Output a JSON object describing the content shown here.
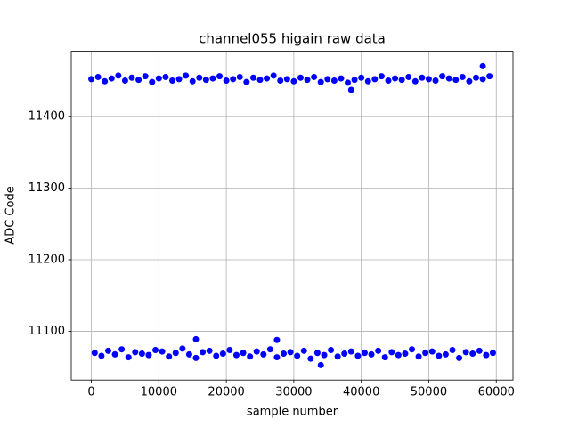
{
  "chart_data": {
    "type": "scatter",
    "title": "channel055 higain raw data",
    "xlabel": "sample number",
    "ylabel": "ADC Code",
    "color": "#0000ff",
    "grid": true,
    "xlim": [
      -2975,
      62475
    ],
    "ylim": [
      11032.2,
      11490.8
    ],
    "xticks": [
      0,
      10000,
      20000,
      30000,
      40000,
      50000,
      60000
    ],
    "yticks": [
      11100,
      11200,
      11300,
      11400
    ],
    "x": [
      0,
      1000,
      2000,
      3000,
      4000,
      5000,
      6000,
      7000,
      8000,
      9000,
      10000,
      11000,
      12000,
      13000,
      14000,
      15000,
      16000,
      17000,
      18000,
      19000,
      20000,
      21000,
      22000,
      23000,
      24000,
      25000,
      26000,
      27000,
      28000,
      29000,
      30000,
      31000,
      32000,
      33000,
      34000,
      35000,
      36000,
      37000,
      38000,
      39000,
      40000,
      41000,
      42000,
      43000,
      44000,
      45000,
      46000,
      47000,
      48000,
      49000,
      50000,
      51000,
      52000,
      53000,
      54000,
      55000,
      56000,
      57000,
      58000,
      59000,
      500,
      1500,
      2500,
      3500,
      4500,
      5500,
      6500,
      7500,
      8500,
      9500,
      10500,
      11500,
      12500,
      13500,
      14500,
      15500,
      16500,
      17500,
      18500,
      19500,
      20500,
      21500,
      22500,
      23500,
      24500,
      25500,
      26500,
      27500,
      28500,
      29500,
      30500,
      31500,
      32500,
      33500,
      34500,
      35500,
      36500,
      37500,
      38500,
      39500,
      40500,
      41500,
      42500,
      43500,
      44500,
      45500,
      46500,
      47500,
      48500,
      49500,
      50500,
      51500,
      52500,
      53500,
      54500,
      55500,
      56500,
      57500,
      58500,
      59500,
      58000,
      38500,
      15500,
      34000,
      27500
    ],
    "values": [
      11452,
      11455,
      11449,
      11453,
      11457,
      11450,
      11454,
      11451,
      11456,
      11448,
      11453,
      11455,
      11450,
      11452,
      11457,
      11449,
      11454,
      11451,
      11453,
      11456,
      11450,
      11452,
      11455,
      11448,
      11454,
      11451,
      11453,
      11457,
      11450,
      11452,
      11449,
      11454,
      11451,
      11455,
      11448,
      11452,
      11450,
      11453,
      11447,
      11451,
      11454,
      11449,
      11452,
      11456,
      11450,
      11453,
      11451,
      11455,
      11449,
      11454,
      11452,
      11450,
      11456,
      11453,
      11451,
      11455,
      11449,
      11454,
      11452,
      11456,
      11070,
      11066,
      11073,
      11068,
      11075,
      11064,
      11071,
      11069,
      11067,
      11074,
      11072,
      11065,
      11070,
      11076,
      11068,
      11063,
      11071,
      11073,
      11066,
      11069,
      11074,
      11067,
      11070,
      11065,
      11072,
      11068,
      11075,
      11064,
      11069,
      11071,
      11066,
      11073,
      11062,
      11070,
      11067,
      11074,
      11065,
      11069,
      11072,
      11066,
      11070,
      11068,
      11073,
      11064,
      11071,
      11067,
      11069,
      11075,
      11065,
      11070,
      11072,
      11066,
      11068,
      11074,
      11063,
      11071,
      11069,
      11073,
      11067,
      11070,
      11470,
      11437,
      11089,
      11053,
      11088
    ]
  }
}
